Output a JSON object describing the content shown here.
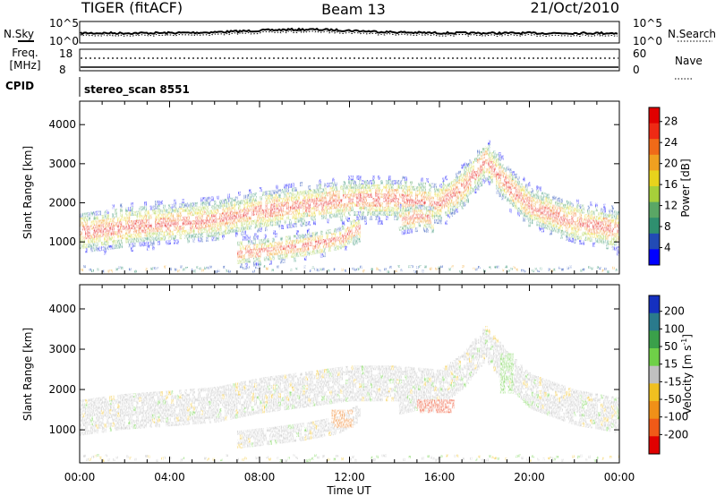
{
  "header": {
    "radar": "TIGER (fitACF)",
    "beam": "Beam 13",
    "date": "21/Oct/2010"
  },
  "top_panels": {
    "nsky_label": "N.Sky",
    "nsky_ticks": [
      "10^5",
      "10^0"
    ],
    "nsearch_label": "N.Search",
    "nsearch_ticks": [
      "10^5",
      "10^0"
    ],
    "freq_label_1": "Freq.",
    "freq_label_2": "[MHz]",
    "freq_ticks": [
      "18",
      "8"
    ],
    "nave_label": "Nave",
    "nave_ticks": [
      "60",
      "0"
    ],
    "cpid_label": "CPID",
    "cpid_value": "stereo_scan 8551"
  },
  "chart_data": [
    {
      "type": "heatmap",
      "parameter": "power",
      "ylabel": "Slant Range [km]",
      "ylim": [
        180,
        4600
      ],
      "yticks": [
        1000,
        2000,
        3000,
        4000
      ],
      "xlim": [
        0,
        24
      ],
      "colorbar_label": "Power [dB]",
      "colorbar_ticks": [
        4,
        8,
        12,
        16,
        20,
        24,
        28
      ],
      "colorscale": [
        "#0000ff",
        "#224bb5",
        "#2f8f6f",
        "#5aa765",
        "#a6cf3a",
        "#e8d31c",
        "#f0a020",
        "#f06a18",
        "#ee2a14",
        "#e00000"
      ],
      "bands": [
        {
          "x": [
            0,
            2,
            4,
            6,
            8,
            10,
            12,
            14,
            16,
            17,
            18,
            19,
            20,
            22,
            24
          ],
          "y": [
            1300,
            1450,
            1530,
            1620,
            1850,
            2000,
            2150,
            2150,
            2050,
            2450,
            3150,
            2500,
            1950,
            1550,
            1350
          ]
        },
        {
          "x": [
            7.0,
            8.5,
            10.0,
            11.5,
            12.4
          ],
          "y": [
            760,
            850,
            960,
            1120,
            1430
          ]
        },
        {
          "x": [
            14.2,
            15.0,
            15.7
          ],
          "y": [
            1600,
            1700,
            1650
          ]
        }
      ]
    },
    {
      "type": "heatmap",
      "parameter": "velocity",
      "ylabel": "Slant Range [km]",
      "ylim": [
        180,
        4600
      ],
      "yticks": [
        1000,
        2000,
        3000,
        4000
      ],
      "xlim": [
        0,
        24
      ],
      "xlabel": "Time UT",
      "xticks": [
        "00:00",
        "04:00",
        "08:00",
        "12:00",
        "16:00",
        "20:00",
        "00:00"
      ],
      "colorbar_label": "Velocity [m s",
      "colorbar_label_sup": "-1",
      "colorbar_label_end": "]",
      "colorbar_ticks": [
        200,
        100,
        50,
        15,
        -15,
        -50,
        -100,
        -200
      ],
      "colorscale": [
        "#1530c0",
        "#2a7a8c",
        "#3aa04a",
        "#6fd048",
        "#c0c0c0",
        "#f0c020",
        "#f09018",
        "#f05a18",
        "#e00000"
      ],
      "patches": [
        {
          "x": [
            15.0,
            16.6
          ],
          "y": [
            1450,
            1750
          ],
          "color": "#ee3a14"
        },
        {
          "x": [
            11.2,
            12.1
          ],
          "y": [
            1150,
            1500
          ],
          "color": "#f07a18"
        },
        {
          "x": [
            18.7,
            19.2
          ],
          "y": [
            2000,
            2900
          ],
          "color": "#6fd048"
        }
      ]
    }
  ]
}
